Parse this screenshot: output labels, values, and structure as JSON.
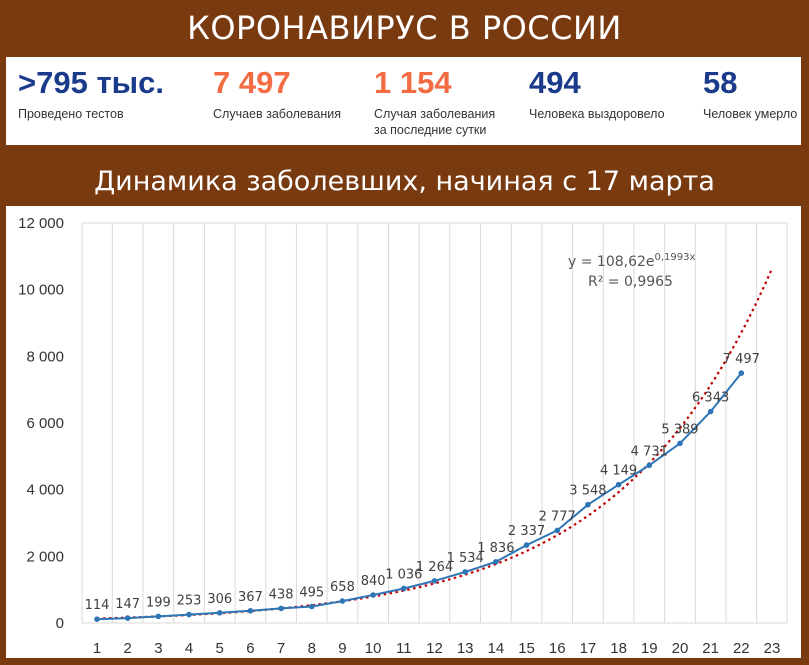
{
  "header": {
    "title": "КОРОНАВИРУС В РОССИИ"
  },
  "stats": [
    {
      "value": ">795 тыс.",
      "label_lines": [
        "Проведено тестов"
      ],
      "color": "#1a3a8a"
    },
    {
      "value": "7 497",
      "label_lines": [
        "Случаев заболевания"
      ],
      "color": "#f26b43"
    },
    {
      "value": "1 154",
      "label_lines": [
        "Случая заболевания",
        "за последние сутки"
      ],
      "color": "#f26b43"
    },
    {
      "value": "494",
      "label_lines": [
        "Человека выздоровело"
      ],
      "color": "#1a3a8a"
    },
    {
      "value": "58",
      "label_lines": [
        "Человек умерло"
      ],
      "color": "#1a3a8a"
    }
  ],
  "colors": {
    "banner": "#7a3a10",
    "series": "#2e75b6",
    "trend": "#c00000"
  },
  "chart_data": {
    "type": "line",
    "title": "Динамика заболевших, начиная с 17 марта",
    "x": [
      1,
      2,
      3,
      4,
      5,
      6,
      7,
      8,
      9,
      10,
      11,
      12,
      13,
      14,
      15,
      16,
      17,
      18,
      19,
      20,
      21,
      22
    ],
    "x_ticks": [
      "1",
      "2",
      "3",
      "4",
      "5",
      "6",
      "7",
      "8",
      "9",
      "10",
      "11",
      "12",
      "13",
      "14",
      "15",
      "16",
      "17",
      "18",
      "19",
      "20",
      "21",
      "22",
      "23"
    ],
    "xlim": [
      1,
      23
    ],
    "ylim": [
      0,
      12000
    ],
    "y_ticks": [
      0,
      2000,
      4000,
      6000,
      8000,
      10000,
      12000
    ],
    "y_tick_labels": [
      "0",
      "2 000",
      "4 000",
      "6 000",
      "8 000",
      "10 000",
      "12 000"
    ],
    "series": [
      {
        "values": [
          114,
          147,
          199,
          253,
          306,
          367,
          438,
          495,
          658,
          840,
          1036,
          1264,
          1534,
          1836,
          2337,
          2777,
          3548,
          4149,
          4731,
          5389,
          6343,
          7497
        ],
        "data_labels": [
          "114",
          "147",
          "199",
          "253",
          "306",
          "367",
          "438",
          "495",
          "658",
          "840",
          "1 036",
          "1 264",
          "1 534",
          "1 836",
          "2 337",
          "2 777",
          "3 548",
          "4 149",
          "4 731",
          "5 389",
          "6 343",
          "7 497"
        ]
      }
    ],
    "trendline": {
      "type": "exponential",
      "a": 108.62,
      "b": 0.1993,
      "equation_prefix": "y = 108,62e",
      "equation_exponent": "0,1993x",
      "r2_text": "R² = 0,9965"
    },
    "grid": "vertical",
    "legend": "none"
  }
}
